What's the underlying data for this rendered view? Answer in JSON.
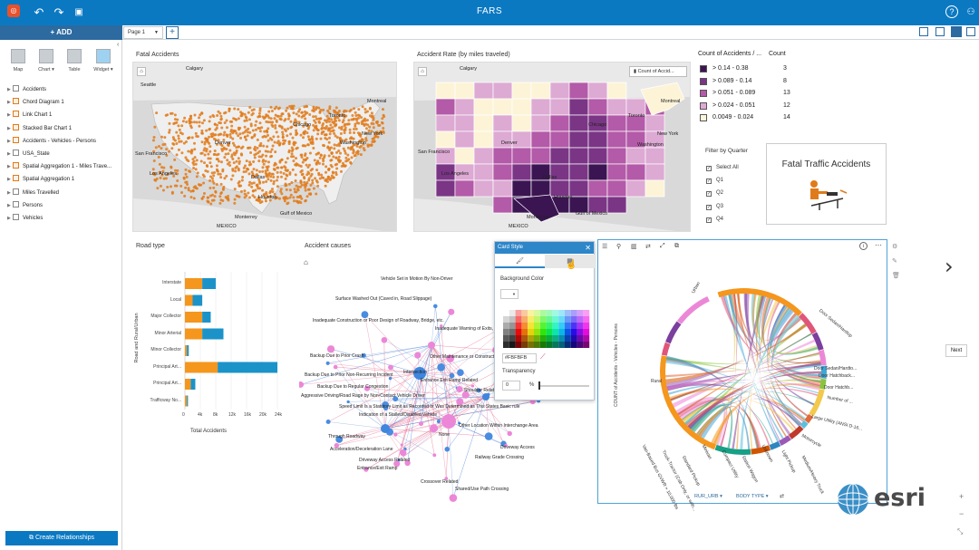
{
  "app": {
    "title": "FARS",
    "add_label": "+ ADD",
    "page_tab": "Page 1",
    "add_tab": "+",
    "help_icon": "?"
  },
  "tools": [
    {
      "label": "Map",
      "icon": "map-icon"
    },
    {
      "label": "Chart ▾",
      "icon": "chart-icon"
    },
    {
      "label": "Table",
      "icon": "table-icon"
    },
    {
      "label": "Widget ▾",
      "icon": "widget-icon"
    }
  ],
  "datasets": [
    {
      "label": "Accidents",
      "kind": "table"
    },
    {
      "label": "Chord Diagram 1",
      "kind": "result"
    },
    {
      "label": "Link Chart 1",
      "kind": "result"
    },
    {
      "label": "Stacked Bar Chart 1",
      "kind": "result"
    },
    {
      "label": "Accidents - Vehicles - Persons",
      "kind": "result"
    },
    {
      "label": "USA_State",
      "kind": "table"
    },
    {
      "label": "Spatial Aggregation 1 - Miles Trave...",
      "kind": "result"
    },
    {
      "label": "Spatial Aggregation 1",
      "kind": "result"
    },
    {
      "label": "Miles Travelled",
      "kind": "table"
    },
    {
      "label": "Persons",
      "kind": "table"
    },
    {
      "label": "Vehicles",
      "kind": "table"
    }
  ],
  "create_relationships": "Create Relationships",
  "cards": {
    "fatal_accidents": {
      "title": "Fatal Accidents",
      "places": [
        "Calgary",
        "Toronto",
        "Montreal",
        "Chicago",
        "New York",
        "Denver",
        "Los Angeles",
        "Dallas",
        "Houston",
        "Monterrey",
        "MEXICO",
        "Gulf of Mexico",
        "Washington",
        "San Francisco",
        "Seattle"
      ]
    },
    "accident_rate": {
      "title": "Accident Rate (by miles traveled)",
      "legend_button": "Count of Accid...",
      "places": [
        "Calgary",
        "Toronto",
        "Montreal",
        "Chicago",
        "New York",
        "Denver",
        "Los Angeles",
        "Dallas",
        "Houston",
        "Monterrey",
        "MEXICO",
        "Gulf of Mexico",
        "San Francisco",
        "Washington"
      ]
    },
    "legend": {
      "header_field": "Count of Accidents / ...",
      "header_count": "Count",
      "rows": [
        {
          "label": "> 0.14 - 0.38",
          "count": "3",
          "color": "#3b1552"
        },
        {
          "label": "> 0.089 - 0.14",
          "count": "8",
          "color": "#7a3585"
        },
        {
          "label": "> 0.051 - 0.089",
          "count": "13",
          "color": "#b35aa8"
        },
        {
          "label": "> 0.024 - 0.051",
          "count": "12",
          "color": "#ddaad4"
        },
        {
          "label": "0.0049 - 0.024",
          "count": "14",
          "color": "#fdf4d8"
        }
      ]
    },
    "filter": {
      "title": "Filter by Quarter",
      "options": [
        {
          "label": "Select All",
          "checked": true
        },
        {
          "label": "Q1",
          "checked": true
        },
        {
          "label": "Q2",
          "checked": true
        },
        {
          "label": "Q3",
          "checked": true
        },
        {
          "label": "Q4",
          "checked": true
        }
      ]
    },
    "fatal_traffic": {
      "title": "Fatal Traffic Accidents"
    },
    "road_type": {
      "title": "Road type"
    },
    "accident_causes": {
      "title": "Accident causes"
    },
    "card_style": {
      "title": "Card Style",
      "background_color_label": "Background Color",
      "hex_value": "#FBFBFB",
      "transparency_label": "Transparency",
      "transparency_value": "0",
      "percent": "%"
    },
    "chord": {
      "ylabel": "COUNT of Accidents - Vehicles - Persons",
      "bottom_field1": "RUR_URB ▾",
      "bottom_field2": "BODY TYPE ▾",
      "labels_top": [
        "Urban",
        "Door Sedan/Hardtop",
        "Door Sedan/Hardto...",
        "Door Hatchback...",
        "Door Hatchb...",
        "Number of ...",
        "Large Utility (ANSI D-16...",
        "Motorcycle",
        "Rural"
      ],
      "labels_bottom": [
        "Van-Based Bus GVWR > 10,000 lbs",
        "Truck-Tractor (Cab Only, or with...",
        "Standard Pickup",
        "Minivan",
        "Compact Utility",
        "Station Wagon",
        "Unknown",
        "Light Pickup",
        "Medium/Heavy Truck"
      ]
    }
  },
  "chart_data": {
    "type": "bar",
    "stacked": true,
    "orientation": "horizontal",
    "categories": [
      "Interstate",
      "Local",
      "Major Collector",
      "Minor Arterial",
      "Minor Collector",
      "Principal Art...",
      "Principal Art...",
      "Trafficway No..."
    ],
    "series": [
      {
        "values": [
          4500,
          2000,
          4500,
          4500,
          500,
          8500,
          1500,
          500
        ],
        "color": "#f5961d"
      },
      {
        "values": [
          3500,
          2500,
          2200,
          5500,
          500,
          15500,
          1200,
          300
        ],
        "color": "#1b93c9"
      }
    ],
    "xlabel": "Total Accidents",
    "ylabel": "Road and Rural/Urban",
    "x_ticks": [
      "0",
      "4k",
      "8k",
      "12k",
      "16k",
      "20k",
      "24k"
    ],
    "xlim": [
      0,
      24000
    ]
  },
  "network": {
    "labels": [
      "Vehicle Set in Motion By Non-Driver",
      "Surface Washed Out (Caved in, Road Slippage)",
      "Inadequate Construction or Poor Design of Roadway, Bridge, etc.",
      "Inadequate Warning of Exits, Lanes...",
      "Backup Due to Prior Crash",
      "Other Maintenance or Construct...",
      "Backup Due to Prior Non-Recurring Incident",
      "Entrance Exit Ramp Related",
      "Backup Due to Regular Congestion",
      "Shoulder Related",
      "Aggressive Driving/Road Rage by Non-Contact Vehicle Driver",
      "Speed Limit Is a Statutory Limit as Recorded or Was Determined as This States Basic rule",
      "Indication of a Stalled/Disabled Vehicle",
      "Other Location Within Interchange Area",
      "None",
      "Through Roadway",
      "Driveway Access",
      "Acceleration/Deceleration Lane",
      "Driveway Access Related",
      "Railway Grade Crossing",
      "Entrance/Exit Ramp",
      "Crossover Related",
      "Shared/Use Path Crossing",
      "Intersection"
    ]
  },
  "next_label": "Next",
  "esri": "esri"
}
